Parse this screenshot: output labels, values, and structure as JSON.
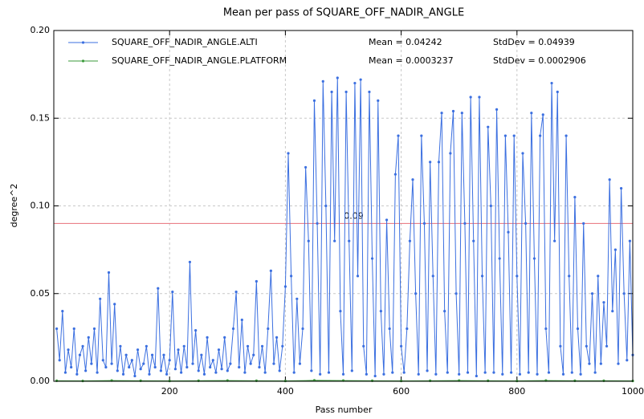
{
  "chart_data": {
    "type": "line",
    "title": "Mean per pass of SQUARE_OFF_NADIR_ANGLE",
    "x_label": "Pass number",
    "y_label": "degree^2",
    "xlim": [
      0,
      1000
    ],
    "ylim": [
      0,
      0.2
    ],
    "xticks": [
      200,
      400,
      600,
      800,
      1000
    ],
    "yticks": [
      {
        "value": 0,
        "label": "0.00"
      },
      {
        "value": 0.05,
        "label": "0.05"
      },
      {
        "value": 0.1,
        "label": "0.10"
      },
      {
        "value": 0.15,
        "label": "0.15"
      },
      {
        "value": 0.2,
        "label": "0.20"
      }
    ],
    "grid": true,
    "reference_line": {
      "value": 0.09,
      "color": "#e8707a"
    },
    "series": [
      {
        "name": "SQUARE_OFF_NADIR_ANGLE.ALTI",
        "color": "#3b6fe0",
        "mean": "Mean = 0.04242",
        "stddev": "StdDev = 0.04939",
        "x": [
          5,
          10,
          15,
          20,
          25,
          30,
          35,
          40,
          45,
          50,
          55,
          60,
          65,
          70,
          75,
          80,
          85,
          90,
          95,
          100,
          105,
          110,
          115,
          120,
          125,
          130,
          135,
          140,
          145,
          150,
          155,
          160,
          165,
          170,
          175,
          180,
          185,
          190,
          195,
          200,
          205,
          210,
          215,
          220,
          225,
          230,
          235,
          240,
          245,
          250,
          255,
          260,
          265,
          270,
          275,
          280,
          285,
          290,
          295,
          300,
          305,
          310,
          315,
          320,
          325,
          330,
          335,
          340,
          345,
          350,
          355,
          360,
          365,
          370,
          375,
          380,
          385,
          390,
          395,
          400,
          405,
          410,
          415,
          420,
          425,
          430,
          435,
          440,
          445,
          450,
          455,
          460,
          465,
          470,
          475,
          480,
          485,
          490,
          495,
          500,
          505,
          510,
          515,
          520,
          525,
          530,
          535,
          540,
          545,
          550,
          555,
          560,
          565,
          570,
          575,
          580,
          585,
          590,
          595,
          600,
          605,
          610,
          615,
          620,
          625,
          630,
          635,
          640,
          645,
          650,
          655,
          660,
          665,
          670,
          675,
          680,
          685,
          690,
          695,
          700,
          705,
          710,
          715,
          720,
          725,
          730,
          735,
          740,
          745,
          750,
          755,
          760,
          765,
          770,
          775,
          780,
          785,
          790,
          795,
          800,
          805,
          810,
          815,
          820,
          825,
          830,
          835,
          840,
          845,
          850,
          855,
          860,
          865,
          870,
          875,
          880,
          885,
          890,
          895,
          900,
          905,
          910,
          915,
          920,
          925,
          930,
          935,
          940,
          945,
          950,
          955,
          960,
          965,
          970,
          975,
          980,
          985,
          990,
          995,
          1000
        ],
        "values": [
          0.03,
          0.012,
          0.04,
          0.005,
          0.018,
          0.008,
          0.03,
          0.004,
          0.015,
          0.02,
          0.006,
          0.025,
          0.01,
          0.03,
          0.005,
          0.047,
          0.012,
          0.008,
          0.062,
          0.01,
          0.044,
          0.006,
          0.02,
          0.004,
          0.015,
          0.008,
          0.012,
          0.003,
          0.018,
          0.007,
          0.01,
          0.02,
          0.004,
          0.015,
          0.008,
          0.053,
          0.006,
          0.015,
          0.004,
          0.012,
          0.051,
          0.007,
          0.018,
          0.005,
          0.02,
          0.008,
          0.068,
          0.01,
          0.029,
          0.006,
          0.015,
          0.004,
          0.025,
          0.008,
          0.012,
          0.005,
          0.018,
          0.007,
          0.025,
          0.006,
          0.01,
          0.03,
          0.051,
          0.008,
          0.035,
          0.005,
          0.02,
          0.01,
          0.015,
          0.057,
          0.008,
          0.02,
          0.005,
          0.03,
          0.063,
          0.01,
          0.025,
          0.006,
          0.02,
          0.054,
          0.13,
          0.06,
          0.005,
          0.047,
          0.01,
          0.03,
          0.122,
          0.08,
          0.006,
          0.16,
          0.09,
          0.004,
          0.171,
          0.1,
          0.005,
          0.165,
          0.08,
          0.173,
          0.04,
          0.004,
          0.165,
          0.08,
          0.006,
          0.17,
          0.06,
          0.172,
          0.02,
          0.004,
          0.165,
          0.07,
          0.003,
          0.16,
          0.04,
          0.004,
          0.092,
          0.03,
          0.005,
          0.118,
          0.14,
          0.02,
          0.005,
          0.03,
          0.08,
          0.115,
          0.05,
          0.004,
          0.14,
          0.09,
          0.006,
          0.125,
          0.06,
          0.004,
          0.125,
          0.153,
          0.04,
          0.005,
          0.13,
          0.154,
          0.05,
          0.004,
          0.153,
          0.09,
          0.005,
          0.162,
          0.08,
          0.003,
          0.162,
          0.06,
          0.005,
          0.145,
          0.1,
          0.005,
          0.155,
          0.07,
          0.004,
          0.14,
          0.085,
          0.005,
          0.14,
          0.06,
          0.004,
          0.13,
          0.09,
          0.005,
          0.153,
          0.07,
          0.004,
          0.14,
          0.152,
          0.03,
          0.005,
          0.17,
          0.08,
          0.165,
          0.02,
          0.004,
          0.14,
          0.06,
          0.005,
          0.105,
          0.03,
          0.004,
          0.09,
          0.02,
          0.01,
          0.05,
          0.005,
          0.06,
          0.01,
          0.045,
          0.02,
          0.115,
          0.04,
          0.075,
          0.01,
          0.11,
          0.05,
          0.012,
          0.08,
          0.015
        ]
      },
      {
        "name": "SQUARE_OFF_NADIR_ANGLE.PLATFORM",
        "color": "#3a9a3a",
        "mean": "Mean = 0.0003237",
        "stddev": "StdDev = 0.0002906",
        "x": [
          5,
          50,
          100,
          150,
          200,
          250,
          300,
          350,
          400,
          450,
          500,
          550,
          600,
          650,
          700,
          750,
          800,
          850,
          900,
          950,
          1000
        ],
        "values": [
          0.0003,
          0.0002,
          0.0004,
          0.0003,
          0.0002,
          0.0003,
          0.0004,
          0.0003,
          0.0002,
          0.0005,
          0.0004,
          0.0003,
          0.0002,
          0.0003,
          0.0004,
          0.0003,
          0.0002,
          0.0004,
          0.0003,
          0.0003,
          0.0002
        ]
      }
    ]
  }
}
